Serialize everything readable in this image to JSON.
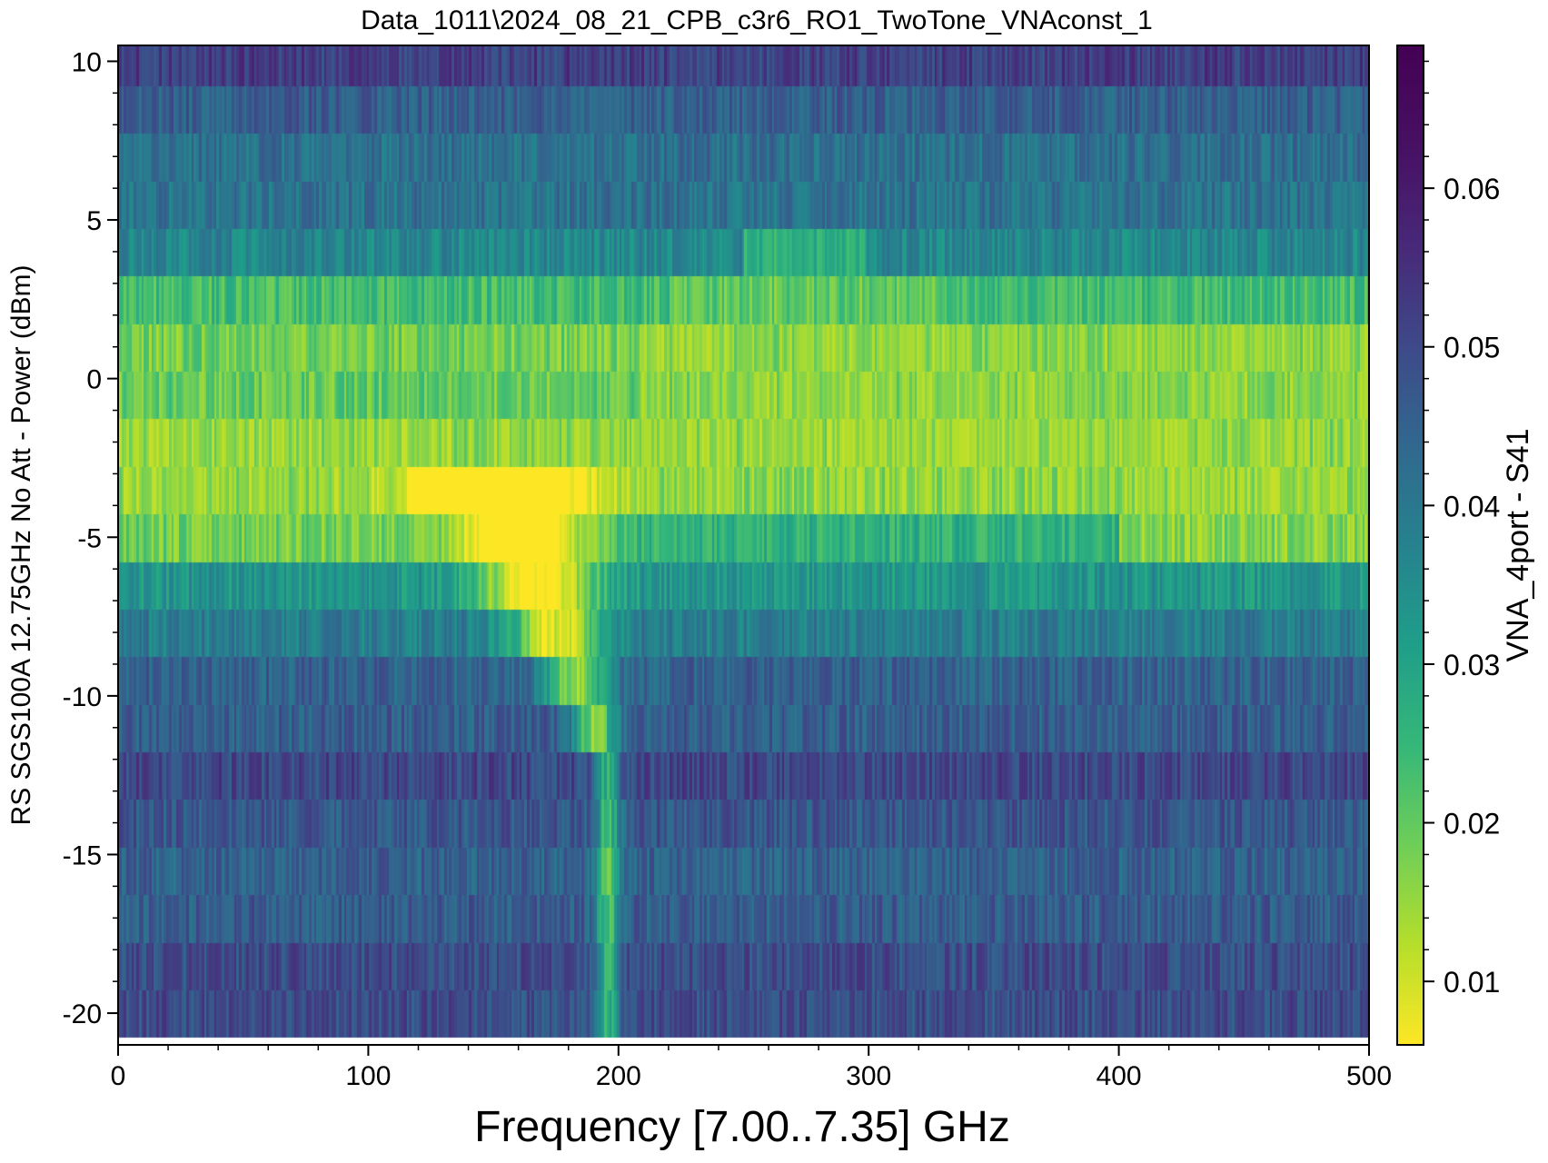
{
  "chart_data": {
    "type": "heatmap",
    "title": "Data_1011\\2024_08_21_CPB_c3r6_RO1_TwoTone_VNAconst_1",
    "xlabel": "Frequency [7.00..7.35] GHz",
    "ylabel": "RS SGS100A 12.75GHz No Att - Power (dBm)",
    "colorbar_label": "VNA_4port - S41",
    "colormap": "viridis_r",
    "x_range": [
      0,
      500
    ],
    "y_range": [
      -21,
      10.5
    ],
    "color_range": [
      0.006,
      0.069
    ],
    "x_ticks": [
      0,
      100,
      200,
      300,
      400,
      500
    ],
    "x_tick_labels": [
      "0",
      "100",
      "200",
      "300",
      "400",
      "500"
    ],
    "y_ticks": [
      -20,
      -15,
      -10,
      -5,
      0,
      5,
      10
    ],
    "y_tick_labels": [
      "-20",
      "-15",
      "-10",
      "-5",
      "0",
      "5",
      "10"
    ],
    "colorbar_ticks": [
      0.01,
      0.02,
      0.03,
      0.04,
      0.05,
      0.06
    ],
    "colorbar_tick_labels": [
      "0.01",
      "0.02",
      "0.03",
      "0.04",
      "0.05",
      "0.06"
    ],
    "power_rows_dbm": [
      -20,
      -18.5,
      -17,
      -15.5,
      -14,
      -12.5,
      -11,
      -9.5,
      -8,
      -6.5,
      -5,
      -3.5,
      -2,
      -0.5,
      1,
      2.5,
      4,
      5.5,
      7,
      8.5,
      10
    ],
    "freq_points": 501,
    "row_base_levels": [
      0.056,
      0.055,
      0.052,
      0.05,
      0.052,
      0.054,
      0.052,
      0.05,
      0.042,
      0.036,
      0.03,
      0.018,
      0.016,
      0.02,
      0.018,
      0.026,
      0.038,
      0.044,
      0.046,
      0.05,
      0.058
    ],
    "features": [
      {
        "name": "resonance-dip",
        "x_start": 200,
        "x_end": 140,
        "y_start": -21,
        "y_end": -3,
        "min_value": 0.014
      },
      {
        "name": "high-power-band-left",
        "x_range": [
          0,
          200
        ],
        "y_range": [
          -5,
          0
        ],
        "min_value": 0.008
      },
      {
        "name": "high-power-band-right",
        "x_range": [
          210,
          500
        ],
        "y_range": [
          -5,
          3
        ],
        "min_value": 0.008
      }
    ]
  }
}
